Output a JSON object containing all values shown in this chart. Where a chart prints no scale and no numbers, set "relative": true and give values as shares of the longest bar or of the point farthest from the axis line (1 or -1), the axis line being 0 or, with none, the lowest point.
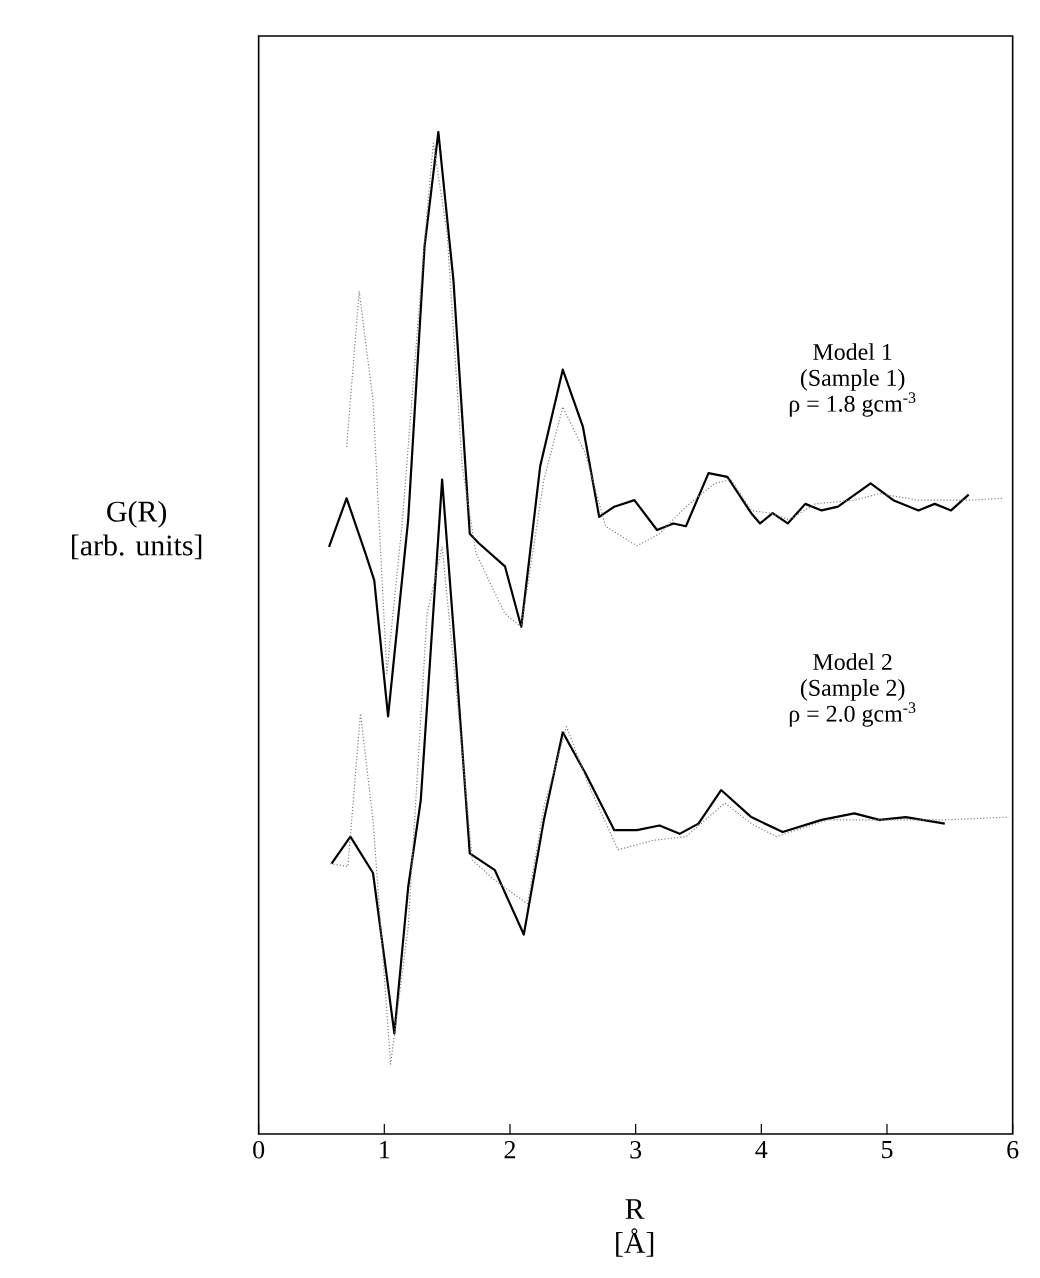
{
  "chart_data": {
    "type": "line",
    "relative": true,
    "xlabel": "R\n[Å]",
    "ylabel": "G(R)\n[arb. units]",
    "xlim": [
      0,
      6
    ],
    "xticks": [
      0,
      1,
      2,
      3,
      4,
      5,
      6
    ],
    "annotations": [
      "Model 1\n(Sample 1)\nρ = 1.8 gcm$^{-3}$",
      "Model 2\n(Sample 2)\nρ = 2.0 gcm$^{-3}$"
    ],
    "series": [
      {
        "color": "#000000",
        "line_style": "solid",
        "x": [
          0.56,
          0.7,
          0.85,
          0.92,
          1.03,
          1.19,
          1.32,
          1.43,
          1.55,
          1.68,
          1.75,
          1.96,
          2.09,
          2.24,
          2.42,
          2.58,
          2.71,
          2.83,
          2.99,
          3.17,
          3.3,
          3.4,
          3.58,
          3.73,
          3.92,
          3.99,
          4.09,
          4.21,
          4.35,
          4.48,
          4.61,
          4.87,
          5.05,
          5.25,
          5.38,
          5.51,
          5.65
        ],
        "values": [
          0.555,
          0.607,
          0.548,
          0.519,
          0.373,
          0.584,
          0.877,
          1.0,
          0.841,
          0.569,
          0.559,
          0.534,
          0.469,
          0.641,
          0.745,
          0.684,
          0.587,
          0.598,
          0.605,
          0.573,
          0.58,
          0.577,
          0.634,
          0.63,
          0.591,
          0.58,
          0.591,
          0.58,
          0.601,
          0.594,
          0.598,
          0.623,
          0.605,
          0.594,
          0.601,
          0.594,
          0.611
        ]
      },
      {
        "color": "#808080",
        "line_style": "dotted",
        "x": [
          0.7,
          0.8,
          0.91,
          1.02,
          1.14,
          1.32,
          1.39,
          1.5,
          1.62,
          1.73,
          1.96,
          2.09,
          2.27,
          2.42,
          2.6,
          2.76,
          3.01,
          3.19,
          3.4,
          3.63,
          3.76,
          3.92,
          4.07,
          4.22,
          4.43,
          4.74,
          4.94,
          5.25,
          5.66,
          5.92
        ],
        "values": [
          0.662,
          0.829,
          0.712,
          0.419,
          0.577,
          0.884,
          0.988,
          0.891,
          0.641,
          0.548,
          0.483,
          0.469,
          0.627,
          0.705,
          0.655,
          0.577,
          0.556,
          0.569,
          0.598,
          0.623,
          0.627,
          0.594,
          0.591,
          0.584,
          0.601,
          0.605,
          0.612,
          0.605,
          0.605,
          0.607
        ]
      },
      {
        "color": "#000000",
        "line_style": "solid",
        "x": [
          0.58,
          0.73,
          0.91,
          1.08,
          1.19,
          1.29,
          1.46,
          1.57,
          1.68,
          1.88,
          2.11,
          2.27,
          2.42,
          2.6,
          2.83,
          3.01,
          3.19,
          3.35,
          3.5,
          3.68,
          3.92,
          4.17,
          4.48,
          4.74,
          4.94,
          5.15,
          5.46
        ],
        "values": [
          0.215,
          0.244,
          0.205,
          0.033,
          0.19,
          0.283,
          0.627,
          0.433,
          0.226,
          0.208,
          0.139,
          0.262,
          0.356,
          0.312,
          0.251,
          0.251,
          0.256,
          0.247,
          0.258,
          0.294,
          0.265,
          0.249,
          0.262,
          0.269,
          0.262,
          0.265,
          0.258
        ]
      },
      {
        "color": "#808080",
        "line_style": "dotted",
        "x": [
          0.57,
          0.71,
          0.81,
          0.91,
          1.05,
          1.19,
          1.34,
          1.46,
          1.57,
          1.7,
          1.88,
          2.14,
          2.27,
          2.45,
          2.63,
          2.86,
          3.14,
          3.4,
          3.71,
          3.92,
          4.12,
          4.53,
          4.94,
          5.46,
          5.97
        ],
        "values": [
          0.215,
          0.212,
          0.376,
          0.262,
          0.0,
          0.147,
          0.483,
          0.555,
          0.405,
          0.219,
          0.197,
          0.172,
          0.276,
          0.362,
          0.298,
          0.23,
          0.24,
          0.244,
          0.28,
          0.258,
          0.244,
          0.262,
          0.262,
          0.262,
          0.265
        ]
      }
    ]
  }
}
